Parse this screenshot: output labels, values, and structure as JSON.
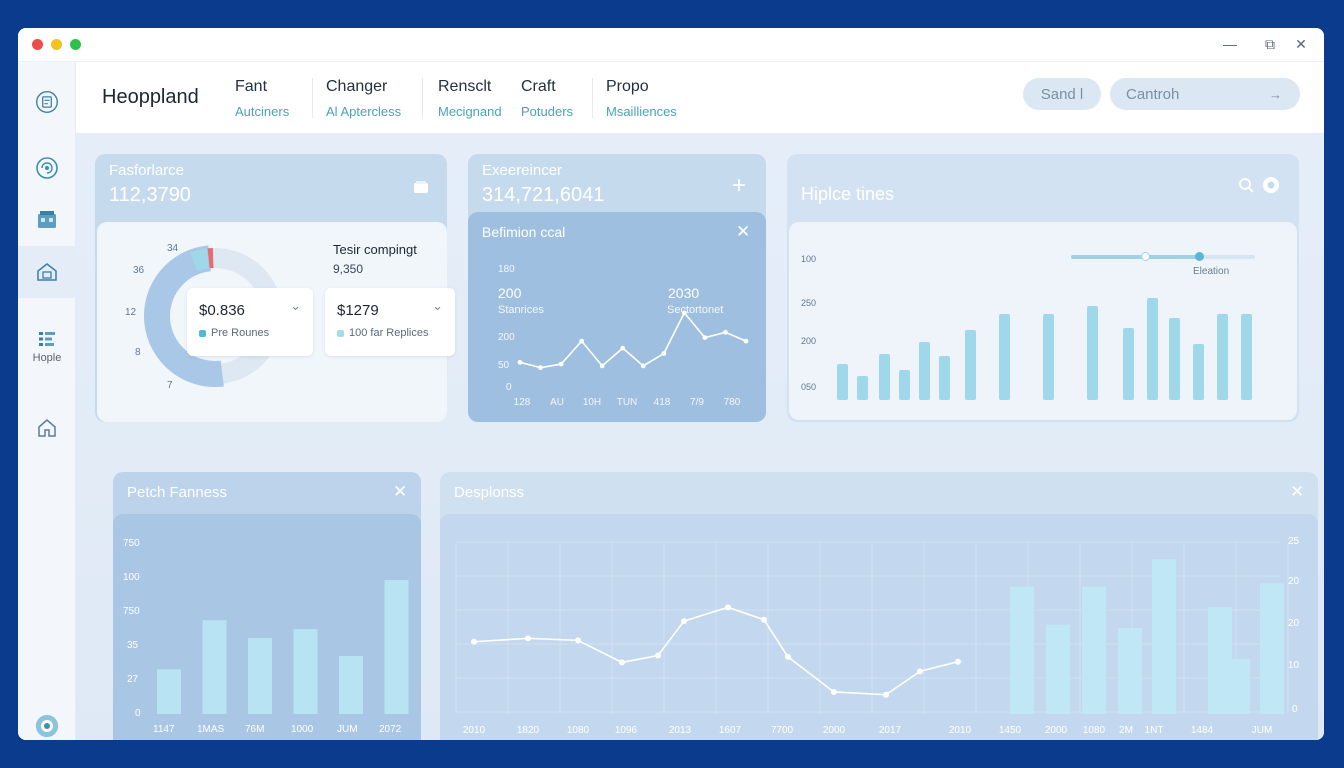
{
  "titlebar": {
    "minimize": "—",
    "maximize": "⧉",
    "close": "✕"
  },
  "sidebar": {
    "hople_label": "Hople"
  },
  "header": {
    "brand": "Heoppland",
    "nav": [
      {
        "title": "Fant",
        "sub": "Autciners"
      },
      {
        "title": "Changer",
        "sub": "Al Aptercless"
      },
      {
        "title": "Rensclt",
        "sub": "Mecignand"
      },
      {
        "title": "Craft",
        "sub": "Potuders"
      },
      {
        "title": "Propo",
        "sub": "Msailliences"
      }
    ],
    "send_label": "Sand l",
    "cantroh_label": "Cantroh",
    "cantroh_arrow": "→"
  },
  "card1": {
    "title": "Fasforlarce",
    "value": "112,3790",
    "pie_labels": [
      "34",
      "36",
      "12",
      "8",
      "7"
    ],
    "side_title": "Tesir compingt",
    "side_value": "9,350",
    "box1_value": "$0.836",
    "box1_label": "Pre Rounes",
    "box2_value": "$1279",
    "box2_label": "100 far Replices",
    "chevron": "⌄",
    "donut": [
      0.8,
      0.06,
      0.03
    ],
    "accent_colors": {
      "main": "#a9c7e6",
      "teal": "#9fd8ea",
      "red": "#e86a73"
    }
  },
  "card2": {
    "title": "Exeereincer",
    "value": "314,721,6041",
    "plus": "+",
    "inner_title": "Befimion ccal",
    "close": "✕",
    "ann1_value": "200",
    "ann1_label": "Stanrices",
    "ann2_value": "2030",
    "ann2_label": "Sectortonet",
    "y_labels": [
      "180",
      "200",
      "50",
      "0"
    ],
    "x_labels": [
      "128",
      "AU",
      "10H",
      "TUN",
      "418",
      "7/9",
      "780"
    ],
    "line": [
      10,
      7,
      9,
      22,
      8,
      18,
      8,
      15,
      38,
      24,
      27,
      22
    ]
  },
  "card3": {
    "title": "Hiplce tines",
    "legend": "Eleation",
    "y_labels": [
      "100",
      "250",
      "200",
      "050"
    ],
    "bars": [
      36,
      24,
      46,
      30,
      58,
      44,
      70,
      86,
      86,
      94,
      72,
      102,
      82,
      56,
      86,
      86
    ]
  },
  "card4": {
    "title": "Petch Fanness",
    "close": "✕",
    "y_labels": [
      "750",
      "100",
      "750",
      "35",
      "27",
      "0"
    ],
    "x_labels": [
      "1147",
      "1MAS",
      "76M",
      "1000",
      "JUM",
      "2072"
    ],
    "bars": [
      20,
      42,
      34,
      38,
      26,
      60
    ]
  },
  "card5": {
    "title": "Desplonss",
    "close": "✕",
    "y_labels": [
      "25",
      "20",
      "20",
      "10",
      "0"
    ],
    "x_labels": [
      "2010",
      "1820",
      "1080",
      "1096",
      "2013",
      "1607",
      "7700",
      "2000",
      "2017",
      "2010",
      "1450",
      "2000",
      "1080",
      "2M",
      "1NT",
      "1484",
      "JUM"
    ],
    "line": [
      10.5,
      11,
      10.7,
      7.5,
      8.5,
      13.5,
      15.5,
      13.7,
      8.3,
      3.2,
      2.8,
      6.2,
      7.6
    ],
    "bars": [
      18.5,
      13,
      18.5,
      12.5,
      22.5,
      15.5,
      8,
      19
    ]
  }
}
